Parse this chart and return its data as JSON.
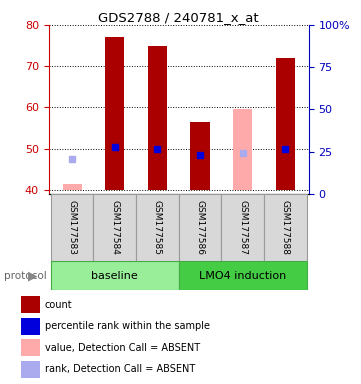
{
  "title": "GDS2788 / 240781_x_at",
  "samples": [
    "GSM177583",
    "GSM177584",
    "GSM177585",
    "GSM177586",
    "GSM177587",
    "GSM177588"
  ],
  "ylim_left": [
    39,
    80
  ],
  "ylim_right": [
    0,
    100
  ],
  "yticks_left": [
    40,
    50,
    60,
    70,
    80
  ],
  "yticks_right": [
    0,
    25,
    50,
    75,
    100
  ],
  "red_bar_tops": [
    null,
    77.0,
    75.0,
    56.5,
    null,
    72.0
  ],
  "pink_bar_tops": [
    41.5,
    null,
    null,
    null,
    59.5,
    null
  ],
  "bar_bottom": 40,
  "blue_marker_values": [
    null,
    50.5,
    50.0,
    48.5,
    null,
    50.0
  ],
  "lavender_marker_values": [
    47.5,
    null,
    null,
    null,
    49.0,
    null
  ],
  "bar_width": 0.45,
  "red_color": "#aa0000",
  "pink_color": "#ffaaaa",
  "blue_color": "#0000dd",
  "lavender_color": "#aaaaee",
  "baseline_color": "#99ee99",
  "lmo4_color": "#44cc44",
  "sample_box_color": "#d8d8d8",
  "legend_items": [
    {
      "color": "#aa0000",
      "label": "count"
    },
    {
      "color": "#0000dd",
      "label": "percentile rank within the sample"
    },
    {
      "color": "#ffaaaa",
      "label": "value, Detection Call = ABSENT"
    },
    {
      "color": "#aaaaee",
      "label": "rank, Detection Call = ABSENT"
    }
  ]
}
